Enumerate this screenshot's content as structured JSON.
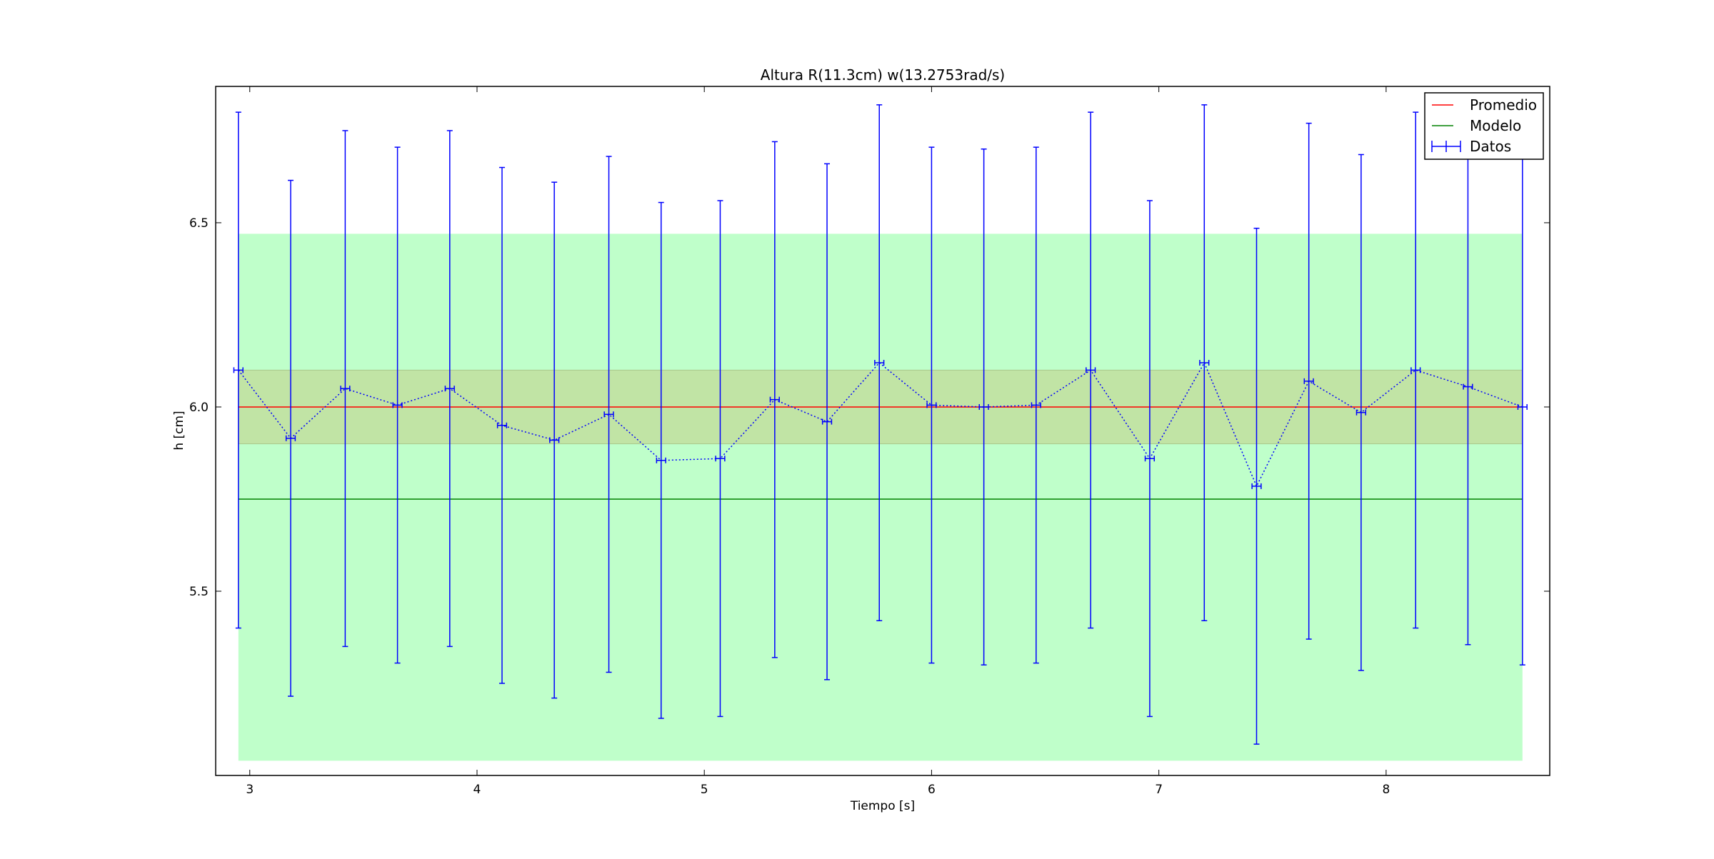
{
  "chart_data": {
    "type": "line",
    "title": "Altura R(11.3cm) w(13.2753rad/s)",
    "xlabel": "Tiempo [s]",
    "ylabel": "h [cm]",
    "xlim": [
      2.85,
      8.72
    ],
    "ylim": [
      5.0,
      6.87
    ],
    "xticks": [
      3,
      4,
      5,
      6,
      7,
      8
    ],
    "yticks": [
      5.5,
      6.0,
      6.5
    ],
    "xtick_labels": [
      "3",
      "4",
      "5",
      "6",
      "7",
      "8"
    ],
    "ytick_labels": [
      "5.5",
      "6.0",
      "6.5"
    ],
    "grid": false,
    "legend_position": "top-right",
    "bands": [
      {
        "y_from": 5.04,
        "y_to": 6.47,
        "x_from": 2.95,
        "x_to": 8.6,
        "color": "#bfffca"
      },
      {
        "y_from": 5.9,
        "y_to": 6.1,
        "x_from": 2.95,
        "x_to": 8.6,
        "color": "#c1e4a5"
      }
    ],
    "series": [
      {
        "name": "Promedio",
        "kind": "hline",
        "y": 6.0,
        "x_from": 2.95,
        "x_to": 8.6,
        "color": "#ff0000"
      },
      {
        "name": "Modelo",
        "kind": "hline",
        "y": 5.75,
        "x_from": 2.95,
        "x_to": 8.6,
        "color": "#008000"
      },
      {
        "name": "Datos",
        "kind": "errorbar",
        "color": "#0000ff",
        "xerr": 0.02,
        "yerr": 0.7,
        "x": [
          2.95,
          3.18,
          3.42,
          3.65,
          3.88,
          4.11,
          4.34,
          4.58,
          4.81,
          5.07,
          5.31,
          5.54,
          5.77,
          6.0,
          6.23,
          6.46,
          6.7,
          6.96,
          7.2,
          7.43,
          7.66,
          7.89,
          8.13,
          8.36,
          8.6
        ],
        "y": [
          6.1,
          5.915,
          6.05,
          6.005,
          6.05,
          5.95,
          5.91,
          5.98,
          5.855,
          5.86,
          6.02,
          5.96,
          6.12,
          6.005,
          6.0,
          6.005,
          6.1,
          5.86,
          6.12,
          5.785,
          6.07,
          5.985,
          6.1,
          6.055,
          6.0
        ]
      }
    ]
  }
}
